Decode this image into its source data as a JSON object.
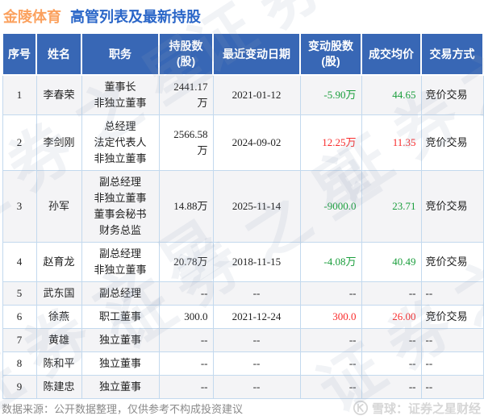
{
  "title": {
    "stock_name": "金陵体育",
    "page_title": "高管列表及最新持股"
  },
  "colors": {
    "red": "#f92b2b",
    "green": "#1a9e3c",
    "header_bg": "#3867b5",
    "title_orange": "#fba15e",
    "title_blue": "#2a66c8",
    "border_blue": "#c3d9ee"
  },
  "chart_data": {
    "type": "table",
    "title": "金陵体育 高管列表及最新持股",
    "columns": [
      {
        "key": "num",
        "label": "序号"
      },
      {
        "key": "name",
        "label": "姓名"
      },
      {
        "key": "position",
        "label": "职务"
      },
      {
        "key": "shares",
        "label": "持股数\n(股)"
      },
      {
        "key": "date",
        "label": "最近变动日期"
      },
      {
        "key": "change",
        "label": "变动股数\n(股)"
      },
      {
        "key": "price",
        "label": "成交均价"
      },
      {
        "key": "method",
        "label": "交易方式"
      }
    ],
    "rows": [
      {
        "num": "1",
        "name": "李春荣",
        "position": [
          "董事长",
          "非独立董事"
        ],
        "shares": "2441.17万",
        "date": "2021-01-12",
        "change": "-5.90万",
        "change_color": "green",
        "price": "44.65",
        "price_color": "green",
        "method": "竞价交易"
      },
      {
        "num": "2",
        "name": "李剑刚",
        "position": [
          "总经理",
          "法定代表人",
          "非独立董事"
        ],
        "shares": "2566.58万",
        "date": "2024-09-02",
        "change": "12.25万",
        "change_color": "red",
        "price": "11.35",
        "price_color": "red",
        "method": "竞价交易"
      },
      {
        "num": "3",
        "name": "孙军",
        "position": [
          "副总经理",
          "非独立董事",
          "董事会秘书",
          "财务总监"
        ],
        "shares": "14.88万",
        "date": "2025-11-14",
        "change": "-9000.0",
        "change_color": "green",
        "price": "23.71",
        "price_color": "green",
        "method": "竞价交易"
      },
      {
        "num": "4",
        "name": "赵育龙",
        "position": [
          "副总经理",
          "非独立董事"
        ],
        "shares": "20.78万",
        "date": "2018-11-15",
        "change": "-4.08万",
        "change_color": "green",
        "price": "40.49",
        "price_color": "green",
        "method": "竞价交易"
      },
      {
        "num": "5",
        "name": "武东国",
        "position": [
          "副总经理"
        ],
        "shares": "--",
        "date": "--",
        "change": "--",
        "change_color": null,
        "price": "--",
        "price_color": null,
        "method": "--"
      },
      {
        "num": "6",
        "name": "徐燕",
        "position": [
          "职工董事"
        ],
        "shares": "300.0",
        "date": "2021-12-24",
        "change": "300.0",
        "change_color": "red",
        "price": "26.00",
        "price_color": "red",
        "method": "竞价交易"
      },
      {
        "num": "7",
        "name": "黄雄",
        "position": [
          "独立董事"
        ],
        "shares": "--",
        "date": "--",
        "change": "--",
        "change_color": null,
        "price": "--",
        "price_color": null,
        "method": "--"
      },
      {
        "num": "8",
        "name": "陈和平",
        "position": [
          "独立董事"
        ],
        "shares": "--",
        "date": "--",
        "change": "--",
        "change_color": null,
        "price": "--",
        "price_color": null,
        "method": "--"
      },
      {
        "num": "9",
        "name": "陈建忠",
        "position": [
          "独立董事"
        ],
        "shares": "--",
        "date": "--",
        "change": "--",
        "change_color": null,
        "price": "--",
        "price_color": null,
        "method": "--"
      }
    ]
  },
  "footer": {
    "disclaimer": "数据来源：公开数据整理，仅供参考不构成投资建议",
    "brand": "雪球：证券之星财经",
    "brand_icon": "xueqiu-logo"
  },
  "watermark": {
    "text": "证券之星"
  }
}
